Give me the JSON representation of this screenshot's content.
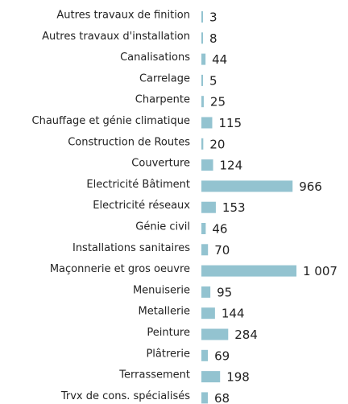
{
  "chart_data": {
    "type": "bar",
    "orientation": "horizontal",
    "categories": [
      "Autres travaux de finition",
      "Autres travaux d'installation",
      "Canalisations",
      "Carrelage",
      "Charpente",
      "Chauffage et génie climatique",
      "Construction de Routes",
      "Couverture",
      "Electricité Bâtiment",
      "Electricité réseaux",
      "Génie civil",
      "Installations sanitaires",
      "Maçonnerie et gros oeuvre",
      "Menuiserie",
      "Metallerie",
      "Peinture",
      "Plâtrerie",
      "Terrassement",
      "Trvx de cons. spécialisés"
    ],
    "values": [
      3,
      8,
      44,
      5,
      25,
      115,
      20,
      124,
      966,
      153,
      46,
      70,
      1007,
      95,
      144,
      284,
      69,
      198,
      68
    ],
    "value_labels": [
      "3",
      "8",
      "44",
      "5",
      "25",
      "115",
      "20",
      "124",
      "966",
      "153",
      "46",
      "70",
      "1 007",
      "95",
      "144",
      "284",
      "69",
      "198",
      "68"
    ],
    "color": "#93c3d0"
  }
}
